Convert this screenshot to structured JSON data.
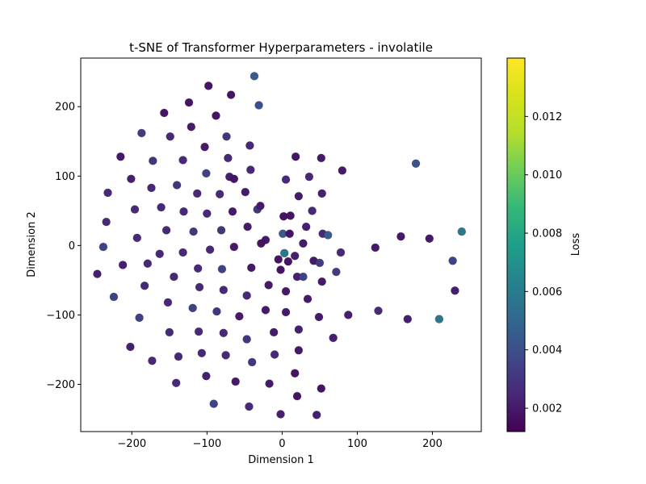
{
  "chart_data": {
    "type": "scatter",
    "title": "t-SNE of Transformer Hyperparameters - involatile",
    "xlabel": "Dimension 1",
    "ylabel": "Dimension 2",
    "xlim": [
      -268,
      265
    ],
    "ylim": [
      -268,
      270
    ],
    "xticks": [
      -200,
      -100,
      0,
      100,
      200
    ],
    "yticks": [
      -200,
      -100,
      0,
      100,
      200
    ],
    "xtick_labels": [
      "−200",
      "−100",
      "0",
      "100",
      "200"
    ],
    "ytick_labels": [
      "−200",
      "−100",
      "0",
      "100",
      "200"
    ],
    "grid": false,
    "colorbar": {
      "label": "Loss",
      "colormap": "viridis",
      "range": [
        0.0012,
        0.014
      ],
      "ticks": [
        0.002,
        0.004,
        0.006,
        0.008,
        0.01,
        0.012
      ],
      "tick_labels": [
        "0.002",
        "0.004",
        "0.006",
        "0.008",
        "0.010",
        "0.012"
      ]
    },
    "points": [
      {
        "x": -98,
        "y": 230,
        "loss": 0.0018
      },
      {
        "x": -37,
        "y": 244,
        "loss": 0.0045
      },
      {
        "x": -68,
        "y": 217,
        "loss": 0.0018
      },
      {
        "x": -124,
        "y": 206,
        "loss": 0.0018
      },
      {
        "x": -31,
        "y": 202,
        "loss": 0.004
      },
      {
        "x": -157,
        "y": 191,
        "loss": 0.0018
      },
      {
        "x": -88,
        "y": 187,
        "loss": 0.0018
      },
      {
        "x": -121,
        "y": 171,
        "loss": 0.002
      },
      {
        "x": -187,
        "y": 162,
        "loss": 0.0032
      },
      {
        "x": -149,
        "y": 157,
        "loss": 0.0025
      },
      {
        "x": -74,
        "y": 157,
        "loss": 0.003
      },
      {
        "x": -43,
        "y": 144,
        "loss": 0.0025
      },
      {
        "x": -103,
        "y": 142,
        "loss": 0.002
      },
      {
        "x": -215,
        "y": 128,
        "loss": 0.002
      },
      {
        "x": 18,
        "y": 128,
        "loss": 0.0018
      },
      {
        "x": -72,
        "y": 126,
        "loss": 0.0025
      },
      {
        "x": 52,
        "y": 126,
        "loss": 0.002
      },
      {
        "x": -172,
        "y": 122,
        "loss": 0.003
      },
      {
        "x": -132,
        "y": 123,
        "loss": 0.0025
      },
      {
        "x": 178,
        "y": 118,
        "loss": 0.0042
      },
      {
        "x": -42,
        "y": 109,
        "loss": 0.0025
      },
      {
        "x": 80,
        "y": 108,
        "loss": 0.002
      },
      {
        "x": -101,
        "y": 104,
        "loss": 0.0035
      },
      {
        "x": -70,
        "y": 99,
        "loss": 0.0022
      },
      {
        "x": -64,
        "y": 96,
        "loss": 0.0018
      },
      {
        "x": 36,
        "y": 99,
        "loss": 0.0025
      },
      {
        "x": -201,
        "y": 96,
        "loss": 0.0022
      },
      {
        "x": 5,
        "y": 95,
        "loss": 0.0025
      },
      {
        "x": -140,
        "y": 87,
        "loss": 0.003
      },
      {
        "x": -174,
        "y": 83,
        "loss": 0.0025
      },
      {
        "x": -232,
        "y": 76,
        "loss": 0.0025
      },
      {
        "x": -113,
        "y": 75,
        "loss": 0.0025
      },
      {
        "x": -83,
        "y": 74,
        "loss": 0.0025
      },
      {
        "x": -49,
        "y": 77,
        "loss": 0.002
      },
      {
        "x": 53,
        "y": 75,
        "loss": 0.0022
      },
      {
        "x": 22,
        "y": 71,
        "loss": 0.002
      },
      {
        "x": -161,
        "y": 55,
        "loss": 0.0025
      },
      {
        "x": -33,
        "y": 52,
        "loss": 0.003
      },
      {
        "x": -29,
        "y": 57,
        "loss": 0.002
      },
      {
        "x": -196,
        "y": 52,
        "loss": 0.0025
      },
      {
        "x": -131,
        "y": 49,
        "loss": 0.0025
      },
      {
        "x": -100,
        "y": 46,
        "loss": 0.0025
      },
      {
        "x": -66,
        "y": 49,
        "loss": 0.002
      },
      {
        "x": 40,
        "y": 50,
        "loss": 0.0025
      },
      {
        "x": 2,
        "y": 42,
        "loss": 0.0018
      },
      {
        "x": 11,
        "y": 43,
        "loss": 0.0018
      },
      {
        "x": -234,
        "y": 34,
        "loss": 0.0025
      },
      {
        "x": -46,
        "y": 27,
        "loss": 0.002
      },
      {
        "x": 32,
        "y": 27,
        "loss": 0.0022
      },
      {
        "x": -154,
        "y": 22,
        "loss": 0.0025
      },
      {
        "x": -81,
        "y": 22,
        "loss": 0.003
      },
      {
        "x": -118,
        "y": 20,
        "loss": 0.003
      },
      {
        "x": 239,
        "y": 20,
        "loss": 0.0058
      },
      {
        "x": 1,
        "y": 17,
        "loss": 0.0045
      },
      {
        "x": 10,
        "y": 17,
        "loss": 0.0018
      },
      {
        "x": 54,
        "y": 17,
        "loss": 0.0025
      },
      {
        "x": 61,
        "y": 15,
        "loss": 0.0045
      },
      {
        "x": 158,
        "y": 13,
        "loss": 0.002
      },
      {
        "x": -193,
        "y": 11,
        "loss": 0.0025
      },
      {
        "x": 196,
        "y": 10,
        "loss": 0.002
      },
      {
        "x": -22,
        "y": 8,
        "loss": 0.002
      },
      {
        "x": -28,
        "y": 3,
        "loss": 0.0018
      },
      {
        "x": 28,
        "y": 3,
        "loss": 0.002
      },
      {
        "x": -64,
        "y": -2,
        "loss": 0.002
      },
      {
        "x": -238,
        "y": -2,
        "loss": 0.0035
      },
      {
        "x": 124,
        "y": -3,
        "loss": 0.002
      },
      {
        "x": -96,
        "y": -6,
        "loss": 0.0025
      },
      {
        "x": -163,
        "y": -12,
        "loss": 0.0025
      },
      {
        "x": -132,
        "y": -10,
        "loss": 0.0025
      },
      {
        "x": 78,
        "y": -10,
        "loss": 0.0025
      },
      {
        "x": 3,
        "y": -11,
        "loss": 0.0058
      },
      {
        "x": 17,
        "y": -15,
        "loss": 0.0022
      },
      {
        "x": -5,
        "y": -20,
        "loss": 0.0018
      },
      {
        "x": 8,
        "y": -23,
        "loss": 0.0018
      },
      {
        "x": 42,
        "y": -22,
        "loss": 0.002
      },
      {
        "x": 50,
        "y": -25,
        "loss": 0.0032
      },
      {
        "x": 227,
        "y": -22,
        "loss": 0.0035
      },
      {
        "x": -179,
        "y": -26,
        "loss": 0.0025
      },
      {
        "x": -212,
        "y": -28,
        "loss": 0.0022
      },
      {
        "x": -112,
        "y": -33,
        "loss": 0.0025
      },
      {
        "x": -41,
        "y": -32,
        "loss": 0.002
      },
      {
        "x": -80,
        "y": -34,
        "loss": 0.0035
      },
      {
        "x": -2,
        "y": -35,
        "loss": 0.0018
      },
      {
        "x": 72,
        "y": -38,
        "loss": 0.0032
      },
      {
        "x": -246,
        "y": -41,
        "loss": 0.0022
      },
      {
        "x": 20,
        "y": -45,
        "loss": 0.0022
      },
      {
        "x": 28,
        "y": -45,
        "loss": 0.0035
      },
      {
        "x": -144,
        "y": -45,
        "loss": 0.0025
      },
      {
        "x": 53,
        "y": -52,
        "loss": 0.002
      },
      {
        "x": -18,
        "y": -57,
        "loss": 0.002
      },
      {
        "x": -183,
        "y": -58,
        "loss": 0.0025
      },
      {
        "x": -110,
        "y": -60,
        "loss": 0.0025
      },
      {
        "x": -78,
        "y": -64,
        "loss": 0.0025
      },
      {
        "x": 230,
        "y": -65,
        "loss": 0.0022
      },
      {
        "x": 5,
        "y": -66,
        "loss": 0.002
      },
      {
        "x": -47,
        "y": -72,
        "loss": 0.0025
      },
      {
        "x": -224,
        "y": -74,
        "loss": 0.0035
      },
      {
        "x": 34,
        "y": -77,
        "loss": 0.002
      },
      {
        "x": -152,
        "y": -82,
        "loss": 0.0025
      },
      {
        "x": -119,
        "y": -90,
        "loss": 0.0035
      },
      {
        "x": -22,
        "y": -93,
        "loss": 0.002
      },
      {
        "x": -87,
        "y": -95,
        "loss": 0.003
      },
      {
        "x": 5,
        "y": -96,
        "loss": 0.002
      },
      {
        "x": 128,
        "y": -94,
        "loss": 0.0025
      },
      {
        "x": 88,
        "y": -100,
        "loss": 0.0022
      },
      {
        "x": -57,
        "y": -102,
        "loss": 0.002
      },
      {
        "x": 49,
        "y": -103,
        "loss": 0.002
      },
      {
        "x": -190,
        "y": -104,
        "loss": 0.0035
      },
      {
        "x": 167,
        "y": -106,
        "loss": 0.0022
      },
      {
        "x": 209,
        "y": -106,
        "loss": 0.0058
      },
      {
        "x": 22,
        "y": -121,
        "loss": 0.0022
      },
      {
        "x": -111,
        "y": -124,
        "loss": 0.0025
      },
      {
        "x": -150,
        "y": -125,
        "loss": 0.0025
      },
      {
        "x": -78,
        "y": -126,
        "loss": 0.0025
      },
      {
        "x": -11,
        "y": -125,
        "loss": 0.002
      },
      {
        "x": 68,
        "y": -133,
        "loss": 0.0022
      },
      {
        "x": -47,
        "y": -135,
        "loss": 0.003
      },
      {
        "x": -202,
        "y": -146,
        "loss": 0.0022
      },
      {
        "x": 22,
        "y": -151,
        "loss": 0.002
      },
      {
        "x": -107,
        "y": -155,
        "loss": 0.0025
      },
      {
        "x": -10,
        "y": -157,
        "loss": 0.0025
      },
      {
        "x": -138,
        "y": -160,
        "loss": 0.0025
      },
      {
        "x": -75,
        "y": -158,
        "loss": 0.0025
      },
      {
        "x": -173,
        "y": -166,
        "loss": 0.0025
      },
      {
        "x": -40,
        "y": -168,
        "loss": 0.003
      },
      {
        "x": 17,
        "y": -184,
        "loss": 0.0018
      },
      {
        "x": -101,
        "y": -188,
        "loss": 0.0022
      },
      {
        "x": -62,
        "y": -196,
        "loss": 0.002
      },
      {
        "x": -141,
        "y": -198,
        "loss": 0.0025
      },
      {
        "x": -17,
        "y": -199,
        "loss": 0.002
      },
      {
        "x": 52,
        "y": -206,
        "loss": 0.0018
      },
      {
        "x": 20,
        "y": -217,
        "loss": 0.0018
      },
      {
        "x": -91,
        "y": -228,
        "loss": 0.0035
      },
      {
        "x": -44,
        "y": -232,
        "loss": 0.0025
      },
      {
        "x": -2,
        "y": -243,
        "loss": 0.0022
      },
      {
        "x": 46,
        "y": -244,
        "loss": 0.0022
      }
    ]
  }
}
